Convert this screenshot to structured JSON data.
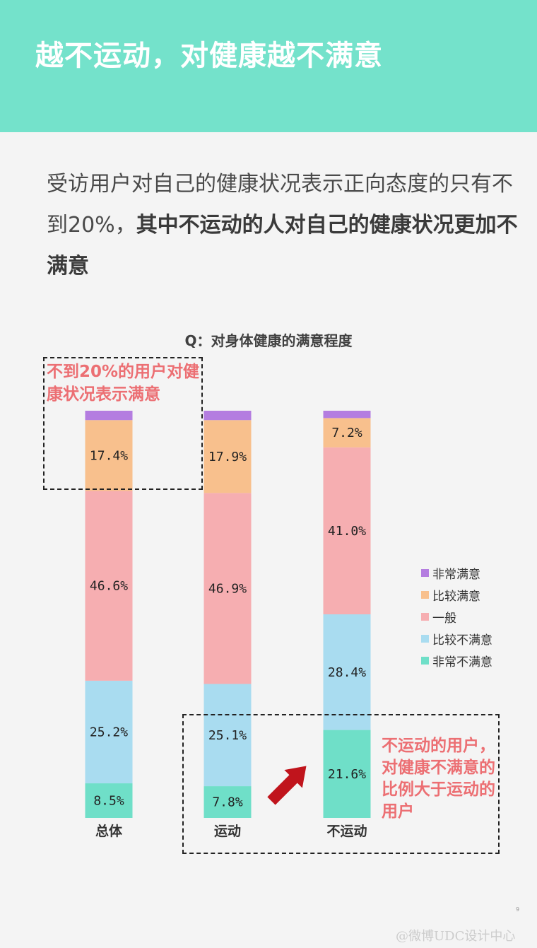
{
  "header": {
    "title": "越不运动，对健康越不满意"
  },
  "intro": {
    "plain": "受访用户对自己的健康状况表示正向态度的只有不到20%，",
    "bold": "其中不运动的人对自己的健康状况更加不满意"
  },
  "chart_data": {
    "type": "bar",
    "stacked": true,
    "title": "Q：对身体健康的满意程度",
    "categories": [
      "总体",
      "运动",
      "不运动"
    ],
    "series": [
      {
        "name": "非常不满意",
        "color": "#6fdfc8",
        "values": [
          8.5,
          7.8,
          21.6
        ]
      },
      {
        "name": "比较不满意",
        "color": "#a9dcf0",
        "values": [
          25.2,
          25.1,
          28.4
        ]
      },
      {
        "name": "一般",
        "color": "#f6aeb1",
        "values": [
          46.6,
          46.9,
          41.0
        ]
      },
      {
        "name": "比较满意",
        "color": "#f8c08d",
        "values": [
          17.4,
          17.9,
          7.2
        ]
      },
      {
        "name": "非常满意",
        "color": "#b47de0",
        "values": [
          2.3,
          2.3,
          1.8
        ]
      }
    ],
    "labels": [
      [
        "8.5%",
        "7.8%",
        "21.6%"
      ],
      [
        "25.2%",
        "25.1%",
        "28.4%"
      ],
      [
        "46.6%",
        "46.9%",
        "41.0%"
      ],
      [
        "17.4%",
        "17.9%",
        "7.2%"
      ],
      [
        "",
        "",
        ""
      ]
    ],
    "ylim": [
      0,
      100
    ],
    "legend_position": "right",
    "legend_order": [
      "非常满意",
      "比较满意",
      "一般",
      "比较不满意",
      "非常不满意"
    ]
  },
  "annotations": {
    "callout_1": "不到20%的用户对健康状况表示满意",
    "callout_2": "不运动的用户，对健康不满意的比例大于运动的用户",
    "arrow_color": "#c0141c"
  },
  "page_number": "9",
  "watermark": "@微博UDC设计中心"
}
